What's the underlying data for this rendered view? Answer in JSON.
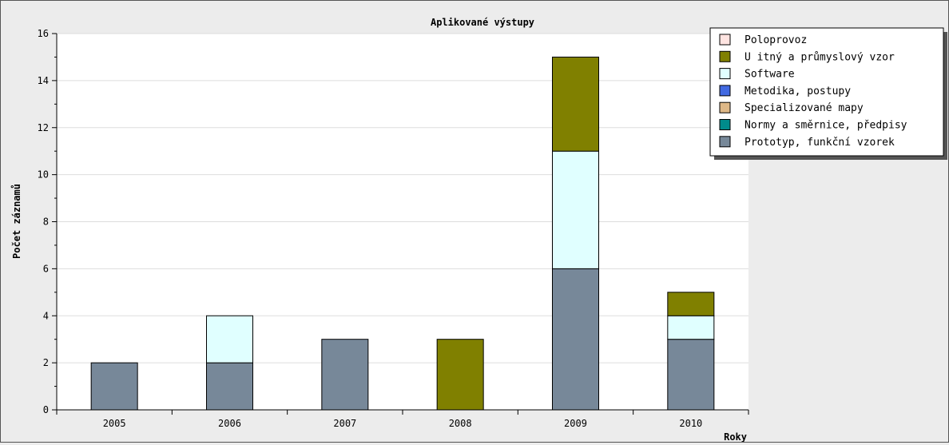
{
  "chart_data": {
    "type": "bar",
    "stacked": true,
    "title": "Aplikované výstupy",
    "xlabel": "Roky",
    "ylabel": "Počet záznamů",
    "ylim": [
      0,
      16
    ],
    "yticks": [
      0,
      2,
      4,
      6,
      8,
      10,
      12,
      14,
      16
    ],
    "grid": true,
    "legend_position": "top-right",
    "categories": [
      "2005",
      "2006",
      "2007",
      "2008",
      "2009",
      "2010"
    ],
    "series": [
      {
        "name": "Prototyp, funkční vzorek",
        "color": "#778899",
        "values": [
          2,
          2,
          3,
          0,
          6,
          3
        ]
      },
      {
        "name": "Normy a směrnice, předpisy",
        "color": "#008b8b",
        "values": [
          0,
          0,
          0,
          0,
          0,
          0
        ]
      },
      {
        "name": "Specializované mapy",
        "color": "#deb887",
        "values": [
          0,
          0,
          0,
          0,
          0,
          0
        ]
      },
      {
        "name": "Metodika, postupy",
        "color": "#4169e1",
        "values": [
          0,
          0,
          0,
          0,
          0,
          0
        ]
      },
      {
        "name": "Software",
        "color": "#e0ffff",
        "values": [
          0,
          2,
          0,
          0,
          5,
          1
        ]
      },
      {
        "name": "U itný a průmyslový vzor",
        "color": "#808000",
        "values": [
          0,
          0,
          0,
          3,
          4,
          1
        ]
      },
      {
        "name": "Poloprovoz",
        "color": "#ffe4e1",
        "values": [
          0,
          0,
          0,
          0,
          0,
          0
        ]
      }
    ],
    "legend_order": [
      "Poloprovoz",
      "U itný a průmyslový vzor",
      "Software",
      "Metodika, postupy",
      "Specializované mapy",
      "Normy a směrnice, předpisy",
      "Prototyp, funkční vzorek"
    ]
  }
}
